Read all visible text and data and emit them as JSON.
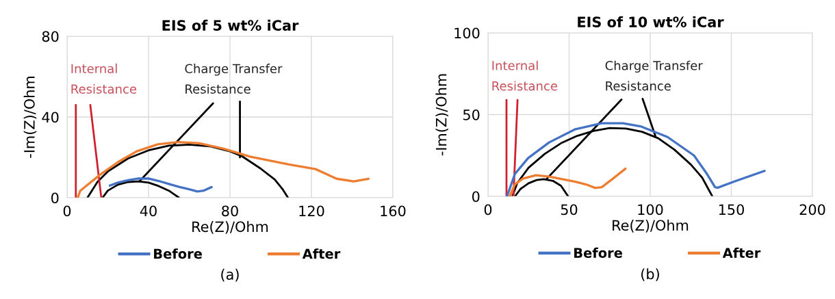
{
  "chart_data": [
    {
      "type": "line",
      "title": "EIS of 5 wt% iCar",
      "xlabel": "Re(Z)/Ohm",
      "ylabel": "-Im(Z)/Ohm",
      "xlim": [
        0,
        160
      ],
      "xticks": [
        0,
        40,
        80,
        120,
        160
      ],
      "ylim": [
        0,
        80
      ],
      "yticks": [
        0,
        40,
        80
      ],
      "grid": true,
      "legend": "bottom",
      "annotations": [
        "Internal\nResistance",
        "Charge Transfer\nResistance",
        "(a)"
      ],
      "series": [
        {
          "name": "Before",
          "color": "#4472c4",
          "x": [
            21,
            25,
            30,
            35,
            40,
            45,
            50,
            55,
            60,
            64,
            67,
            71
          ],
          "values": [
            6,
            7.5,
            8.7,
            9.5,
            9.5,
            8.3,
            6.8,
            5.4,
            4.2,
            3.1,
            3.5,
            5.3
          ]
        },
        {
          "name": "After",
          "color": "#ed7d31",
          "x": [
            5.2,
            6.5,
            9.7,
            16.1,
            25.2,
            34.2,
            44.6,
            55,
            65,
            76.9,
            89.8,
            109,
            122,
            132.4,
            140.8,
            148
          ],
          "values": [
            0,
            3.5,
            6.1,
            11.3,
            17.8,
            23,
            26.5,
            27.6,
            27,
            24.3,
            20.4,
            16.5,
            14.2,
            9.4,
            8.1,
            9.4
          ]
        },
        {
          "color": "#000000",
          "x": [
            10,
            15,
            20,
            30,
            40,
            50,
            60,
            70,
            80,
            86,
            95,
            102,
            106,
            108.5
          ],
          "values": [
            0,
            8,
            13,
            19.5,
            23.5,
            25.8,
            26.3,
            25.5,
            23,
            20.5,
            14.5,
            9,
            4,
            0
          ]
        },
        {
          "color": "#000000",
          "x": [
            17.4,
            20,
            25,
            30,
            35,
            40,
            45,
            50,
            55
          ],
          "values": [
            0,
            3.5,
            6.5,
            7.8,
            8.1,
            7.5,
            5.8,
            3.5,
            0
          ]
        },
        {
          "color": "#d0202e",
          "x": [
            4.3,
            4.3
          ],
          "values": [
            0,
            46
          ]
        },
        {
          "color": "#d0202e",
          "x": [
            16.8,
            11.4
          ],
          "values": [
            0,
            46
          ]
        },
        {
          "color": "#000000",
          "x": [
            35.5,
            71.7
          ],
          "values": [
            8.1,
            46.8
          ]
        },
        {
          "color": "#000000",
          "x": [
            84.9,
            84.9
          ],
          "values": [
            20,
            47.7
          ]
        }
      ]
    },
    {
      "type": "line",
      "title": "EIS of 10 wt% iCar",
      "xlabel": "Re(Z)/Ohm",
      "ylabel": "-Im(Z)/Ohm",
      "xlim": [
        0,
        200
      ],
      "xticks": [
        0,
        50,
        100,
        150,
        200
      ],
      "ylim": [
        0,
        100
      ],
      "yticks": [
        0,
        50,
        100
      ],
      "grid": true,
      "legend": "bottom",
      "annotations": [
        "Internal\nResistance",
        "Charge Transfer\nResistance",
        "(b)"
      ],
      "series": [
        {
          "name": "Before",
          "color": "#4472c4",
          "x": [
            11.7,
            16.6,
            24.7,
            37.7,
            53.9,
            70.1,
            83.1,
            94.5,
            110.7,
            127,
            135,
            140,
            141.6,
            151.3,
            170.5
          ],
          "values": [
            0,
            13.7,
            23.4,
            33,
            41.1,
            44.7,
            44.7,
            42.7,
            36.3,
            25,
            13.7,
            5.6,
            5.3,
            8.9,
            15.6
          ]
        },
        {
          "name": "After",
          "color": "#ed7d31",
          "x": [
            13.3,
            16.6,
            21.4,
            29.5,
            37.7,
            45.8,
            53.9,
            60.4,
            66.1,
            70.1,
            76.6,
            84.7
          ],
          "values": [
            0,
            7.3,
            10.8,
            12.9,
            12.1,
            10.5,
            8.9,
            7.3,
            5.2,
            5.6,
            10.5,
            16.9
          ]
        },
        {
          "color": "#000000",
          "x": [
            15,
            18,
            25,
            35,
            45,
            55,
            65,
            75,
            85,
            95,
            105,
            115,
            125,
            132,
            138.3
          ],
          "values": [
            0,
            8,
            17.5,
            26,
            32.5,
            37,
            40,
            41.8,
            41.5,
            39.5,
            35.5,
            28.5,
            19.5,
            11.5,
            0
          ]
        },
        {
          "color": "#000000",
          "x": [
            16.6,
            20,
            25,
            30,
            34.4,
            40,
            45,
            49.4
          ],
          "values": [
            0,
            4.5,
            8,
            10,
            10.5,
            9.5,
            6.5,
            0
          ]
        },
        {
          "color": "#d0202e",
          "x": [
            11.4,
            11.4
          ],
          "values": [
            0,
            58.9
          ]
        },
        {
          "color": "#d0202e",
          "x": [
            15.7,
            18.2
          ],
          "values": [
            0,
            58.9
          ]
        },
        {
          "color": "#000000",
          "x": [
            36,
            82.3
          ],
          "values": [
            10.5,
            59.2
          ]
        },
        {
          "color": "#000000",
          "x": [
            103.4,
            95.3
          ],
          "values": [
            36.3,
            59.7
          ]
        }
      ]
    }
  ]
}
